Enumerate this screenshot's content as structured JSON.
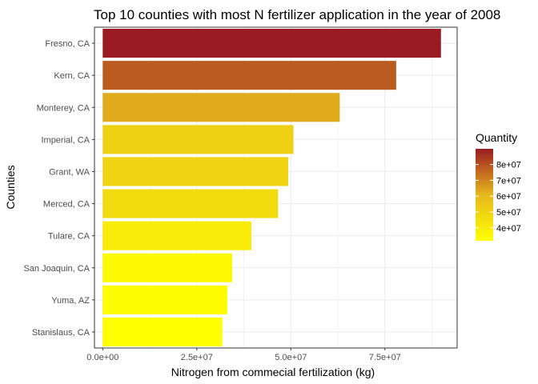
{
  "chart_data": {
    "type": "bar",
    "orientation": "horizontal",
    "title": "Top 10 counties with most N fertilizer application in the year of 2008",
    "xlabel": "Nitrogen from commecial fertilization (kg)",
    "ylabel": "Counties",
    "categories": [
      "Fresno, CA",
      "Kern, CA",
      "Monterey, CA",
      "Imperial, CA",
      "Grant, WA",
      "Merced, CA",
      "Tulare, CA",
      "San Joaquin, CA",
      "Yuma, AZ",
      "Stanislaus, CA"
    ],
    "values": [
      89900000,
      78000000,
      63000000,
      50700000,
      49300000,
      46600000,
      39500000,
      34400000,
      33100000,
      31800000
    ],
    "xlim": [
      -2200000,
      94200000
    ],
    "xticks": [
      0,
      25000000,
      50000000,
      75000000
    ],
    "xtick_labels": [
      "0.0e+00",
      "2.5e+07",
      "5.0e+07",
      "7.5e+07"
    ],
    "grid": true,
    "legend": {
      "title": "Quantity",
      "placement": "right",
      "ticks": [
        40000000,
        50000000,
        60000000,
        70000000,
        80000000
      ],
      "tick_labels": [
        "4e+07",
        "5e+07",
        "6e+07",
        "7e+07",
        "8e+07"
      ],
      "range": [
        31800000,
        89900000
      ],
      "color_low": "#ffff00",
      "color_high": "#9b1b22"
    }
  }
}
